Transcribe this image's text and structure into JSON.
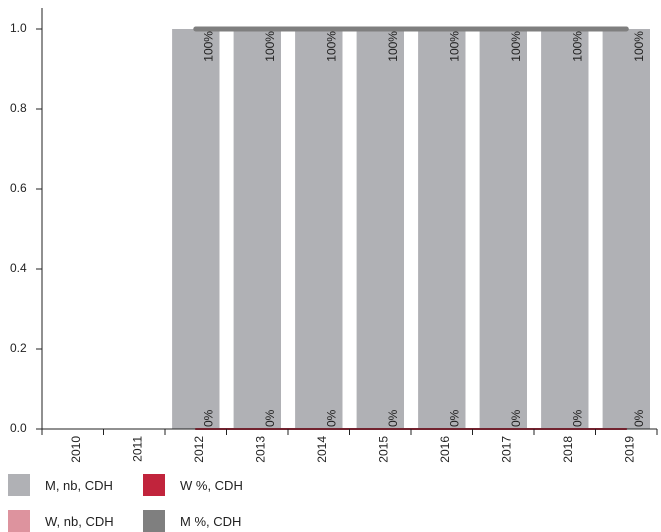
{
  "chart_data": {
    "type": "bar",
    "categories": [
      "2010",
      "2011",
      "2012",
      "2013",
      "2014",
      "2015",
      "2016",
      "2017",
      "2018",
      "2019"
    ],
    "series": [
      {
        "name": "M, nb, CDH",
        "kind": "bar",
        "values": [
          null,
          null,
          1,
          1,
          1,
          1,
          1,
          1,
          1,
          1
        ]
      },
      {
        "name": "W, nb, CDH",
        "kind": "bar",
        "values": [
          null,
          null,
          0,
          0,
          0,
          0,
          0,
          0,
          0,
          0
        ]
      },
      {
        "name": "W %, CDH",
        "kind": "line",
        "values": [
          null,
          null,
          0,
          0,
          0,
          0,
          0,
          0,
          0,
          0
        ]
      },
      {
        "name": "M %, CDH",
        "kind": "line",
        "values": [
          null,
          null,
          1,
          1,
          1,
          1,
          1,
          1,
          1,
          1
        ]
      }
    ],
    "ylim": [
      0,
      1.0
    ],
    "yticks": [
      "0.0",
      "0.2",
      "0.4",
      "0.6",
      "0.8",
      "1.0"
    ],
    "data_labels_top": [
      "",
      "",
      "100%",
      "100%",
      "100%",
      "100%",
      "100%",
      "100%",
      "100%",
      "100%"
    ],
    "data_labels_bottom": [
      "",
      "",
      "0%",
      "0%",
      "0%",
      "0%",
      "0%",
      "0%",
      "0%",
      "0%"
    ],
    "grid": false,
    "legend_position": "bottom-left",
    "colors": {
      "M, nb, CDH": "#b0b1b5",
      "W, nb, CDH": "#dd939e",
      "W %, CDH": "#c1243c",
      "M %, CDH": "#7f7f7f"
    }
  },
  "legend": {
    "items": [
      {
        "label": "M, nb, CDH",
        "color": "#b0b1b5"
      },
      {
        "label": "W %, CDH",
        "color": "#c1243c"
      },
      {
        "label": "W, nb, CDH",
        "color": "#dd939e"
      },
      {
        "label": "M %, CDH",
        "color": "#7f7f7f"
      }
    ]
  }
}
